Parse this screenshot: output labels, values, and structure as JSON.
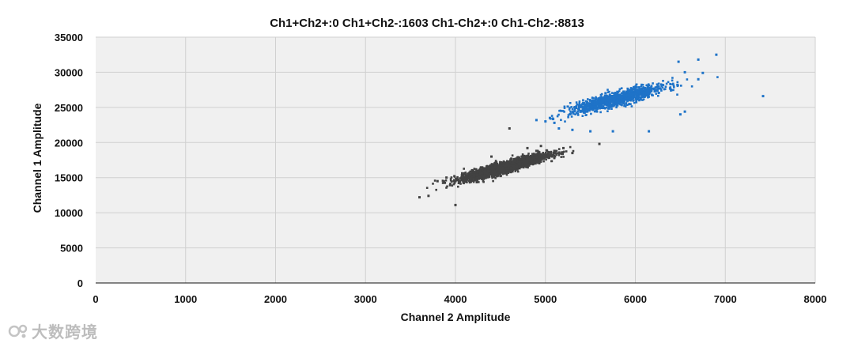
{
  "chart_data": {
    "type": "scatter",
    "title": "Ch1+Ch2+:0  Ch1+Ch2-:1603  Ch1-Ch2+:0  Ch1-Ch2-:8813",
    "xlabel": "Channel 2 Amplitude",
    "ylabel": "Channel 1 Amplitude",
    "xlim": [
      0,
      8000
    ],
    "ylim": [
      0,
      35000
    ],
    "xticks": [
      0,
      1000,
      2000,
      3000,
      4000,
      5000,
      6000,
      7000,
      8000
    ],
    "yticks": [
      0,
      5000,
      10000,
      15000,
      20000,
      25000,
      30000,
      35000
    ],
    "grid": true,
    "plot_background": "#f0f0f0",
    "series": [
      {
        "color": "#424242",
        "counts_as": "Ch1-Ch2-",
        "count": 8813,
        "center": [
          4550,
          16500
        ],
        "slope": 3.5,
        "spread_x": 230,
        "spread_perp": 380,
        "outliers": [
          [
            3600,
            12200
          ],
          [
            3700,
            12400
          ],
          [
            4000,
            11100
          ],
          [
            4600,
            22000
          ],
          [
            5600,
            19800
          ],
          [
            5200,
            19200
          ],
          [
            5100,
            18800
          ],
          [
            5300,
            18500
          ],
          [
            4900,
            18800
          ],
          [
            4950,
            19500
          ],
          [
            4800,
            19200
          ],
          [
            4400,
            18000
          ],
          [
            5000,
            18000
          ],
          [
            3900,
            15000
          ],
          [
            3800,
            14500
          ]
        ]
      },
      {
        "color": "#1e73c8",
        "counts_as": "Ch1+Ch2-",
        "count": 1603,
        "center": [
          5800,
          26200
        ],
        "slope": 3.2,
        "spread_x": 260,
        "spread_perp": 500,
        "outliers": [
          [
            6480,
            31500
          ],
          [
            6550,
            30000
          ],
          [
            6700,
            31800
          ],
          [
            6900,
            32500
          ],
          [
            6700,
            29000
          ],
          [
            6750,
            29900
          ],
          [
            7420,
            26600
          ],
          [
            6500,
            24000
          ],
          [
            6550,
            24400
          ],
          [
            5500,
            21600
          ],
          [
            5750,
            21600
          ],
          [
            6150,
            21600
          ],
          [
            5000,
            23000
          ],
          [
            5050,
            23500
          ],
          [
            4900,
            23200
          ],
          [
            5150,
            22000
          ],
          [
            5100,
            22800
          ],
          [
            5300,
            21800
          ]
        ]
      }
    ]
  },
  "watermark": {
    "text": "大数跨境",
    "icon": "watermark-logo-icon"
  }
}
